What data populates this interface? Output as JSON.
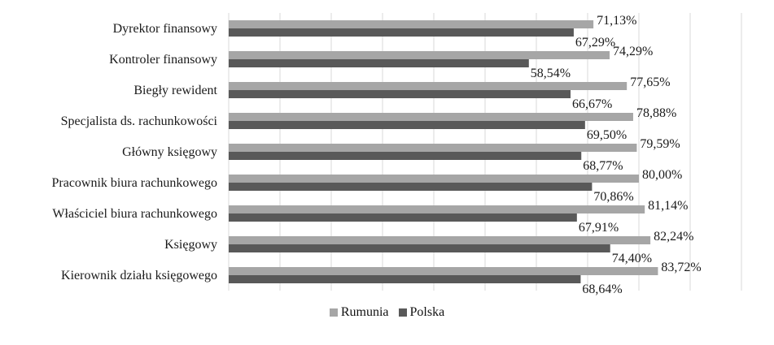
{
  "chart_data": {
    "type": "bar",
    "orientation": "horizontal",
    "categories": [
      "Dyrektor finansowy",
      "Kontroler finansowy",
      "Biegły rewident",
      "Specjalista ds. rachunkowości",
      "Główny księgowy",
      "Pracownik biura rachunkowego",
      "Właściciel biura rachunkowego",
      "Księgowy",
      "Kierownik działu księgowego"
    ],
    "series": [
      {
        "name": "Rumunia",
        "color": "#a6a6a6",
        "values": [
          71.13,
          74.29,
          77.65,
          78.88,
          79.59,
          80.0,
          81.14,
          82.24,
          83.72
        ],
        "labels": [
          "71,13%",
          "74,29%",
          "77,65%",
          "78,88%",
          "79,59%",
          "80,00%",
          "81,14%",
          "82,24%",
          "83,72%"
        ]
      },
      {
        "name": "Polska",
        "color": "#595959",
        "values": [
          67.29,
          58.54,
          66.67,
          69.5,
          68.77,
          70.86,
          67.91,
          74.4,
          68.64
        ],
        "labels": [
          "67,29%",
          "58,54%",
          "66,67%",
          "69,50%",
          "68,77%",
          "70,86%",
          "67,91%",
          "74,40%",
          "68,64%"
        ]
      }
    ],
    "xlim": [
      0,
      100
    ],
    "grid": true,
    "legend_position": "bottom"
  }
}
